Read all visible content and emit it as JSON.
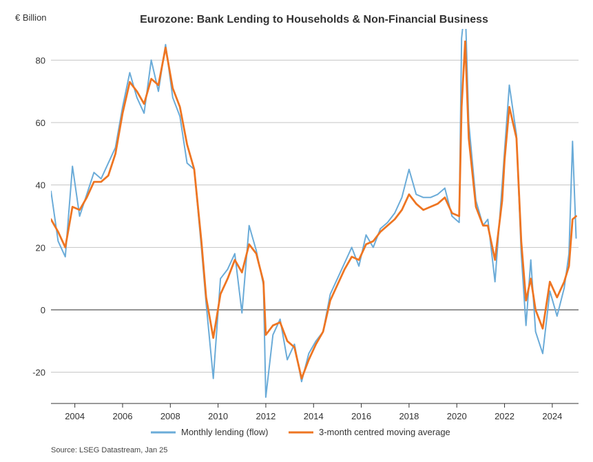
{
  "chart_data": {
    "type": "line",
    "title": "Eurozone: Bank Lending to Households & Non-Financial Business",
    "unit_label": "€ Billion",
    "ylim": [
      -30,
      90
    ],
    "xlim": [
      2003.0,
      2025.1
    ],
    "y_ticks": [
      80,
      60,
      40,
      20,
      0,
      -20
    ],
    "x_ticks": [
      2004,
      2006,
      2008,
      2010,
      2012,
      2014,
      2016,
      2018,
      2020,
      2022,
      2024
    ],
    "grid": true,
    "legend_position": "bottom",
    "source": "Source: LSEG Datastream, Jan 25",
    "series": [
      {
        "name": "Monthly lending (flow)",
        "color": "#6aabd8",
        "x": [
          2003.0,
          2003.3,
          2003.6,
          2003.9,
          2004.2,
          2004.5,
          2004.8,
          2005.1,
          2005.4,
          2005.7,
          2006.0,
          2006.3,
          2006.6,
          2006.9,
          2007.2,
          2007.5,
          2007.8,
          2008.1,
          2008.4,
          2008.7,
          2009.0,
          2009.3,
          2009.5,
          2009.8,
          2010.1,
          2010.4,
          2010.7,
          2011.0,
          2011.3,
          2011.6,
          2011.9,
          2012.0,
          2012.3,
          2012.6,
          2012.9,
          2013.2,
          2013.5,
          2013.8,
          2014.1,
          2014.4,
          2014.7,
          2015.0,
          2015.3,
          2015.6,
          2015.9,
          2016.2,
          2016.5,
          2016.8,
          2017.1,
          2017.4,
          2017.7,
          2018.0,
          2018.3,
          2018.6,
          2018.9,
          2019.2,
          2019.5,
          2019.8,
          2020.1,
          2020.2,
          2020.35,
          2020.5,
          2020.8,
          2021.1,
          2021.3,
          2021.6,
          2021.9,
          2022.0,
          2022.2,
          2022.5,
          2022.7,
          2022.9,
          2023.1,
          2023.3,
          2023.6,
          2023.9,
          2024.2,
          2024.5,
          2024.7,
          2024.85,
          2025.0
        ],
        "values": [
          38,
          22,
          17,
          46,
          30,
          37,
          44,
          42,
          47,
          52,
          65,
          76,
          68,
          63,
          80,
          70,
          85,
          68,
          62,
          47,
          45,
          20,
          2,
          -22,
          10,
          13,
          18,
          -1,
          27,
          19,
          8,
          -28,
          -8,
          -3,
          -16,
          -11,
          -23,
          -14,
          -10,
          -7,
          5,
          10,
          15,
          20,
          14,
          24,
          20,
          26,
          28,
          31,
          36,
          45,
          37,
          36,
          36,
          37,
          39,
          30,
          28,
          87,
          98,
          60,
          35,
          27,
          29,
          9,
          40,
          51,
          72,
          56,
          18,
          -5,
          16,
          -7,
          -14,
          6,
          -2,
          7,
          18,
          54,
          23
        ]
      },
      {
        "name": "3-month centred moving average",
        "color": "#ee7522",
        "x": [
          2003.0,
          2003.3,
          2003.6,
          2003.9,
          2004.2,
          2004.5,
          2004.8,
          2005.1,
          2005.4,
          2005.7,
          2006.0,
          2006.3,
          2006.6,
          2006.9,
          2007.2,
          2007.5,
          2007.8,
          2008.1,
          2008.4,
          2008.7,
          2009.0,
          2009.3,
          2009.5,
          2009.8,
          2010.1,
          2010.4,
          2010.7,
          2011.0,
          2011.3,
          2011.6,
          2011.9,
          2012.0,
          2012.3,
          2012.6,
          2012.9,
          2013.2,
          2013.5,
          2013.8,
          2014.1,
          2014.4,
          2014.7,
          2015.0,
          2015.3,
          2015.6,
          2015.9,
          2016.2,
          2016.5,
          2016.8,
          2017.1,
          2017.4,
          2017.7,
          2018.0,
          2018.3,
          2018.6,
          2018.9,
          2019.2,
          2019.5,
          2019.8,
          2020.1,
          2020.2,
          2020.35,
          2020.5,
          2020.8,
          2021.1,
          2021.3,
          2021.6,
          2021.9,
          2022.0,
          2022.2,
          2022.5,
          2022.7,
          2022.9,
          2023.1,
          2023.3,
          2023.6,
          2023.9,
          2024.2,
          2024.5,
          2024.7,
          2024.85,
          2025.0
        ],
        "values": [
          29,
          25,
          20,
          33,
          32,
          36,
          41,
          41,
          43,
          50,
          63,
          73,
          70,
          66,
          74,
          72,
          84,
          71,
          65,
          53,
          45,
          22,
          4,
          -9,
          5,
          10,
          16,
          12,
          21,
          18,
          9,
          -8,
          -5,
          -4,
          -10,
          -12,
          -22,
          -16,
          -11,
          -7,
          3,
          8,
          13,
          17,
          16,
          21,
          22,
          25,
          27,
          29,
          32,
          37,
          34,
          32,
          33,
          34,
          36,
          31,
          30,
          65,
          86,
          55,
          33,
          27,
          27,
          16,
          35,
          48,
          65,
          55,
          22,
          3,
          10,
          0,
          -6,
          9,
          4,
          9,
          14,
          29,
          30
        ]
      }
    ]
  }
}
